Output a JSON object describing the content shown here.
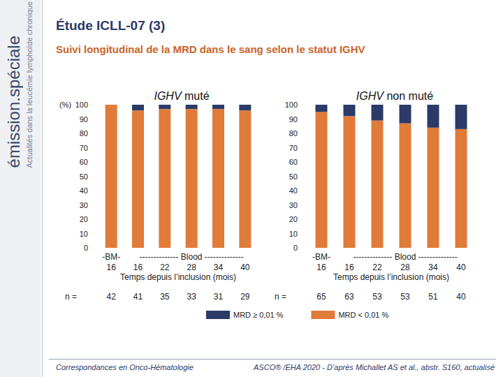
{
  "page": {
    "title": "Étude ICLL-07 (3)",
    "subtitle": "Suivi longitudinal de la MRD dans le sang selon le statut IGHV",
    "banner": "émission.spéciale",
    "banner_subtitle": "Actualités dans la leucémie lymphoïde chronique",
    "footer_left": "Correspondances en Onco-Hématologie",
    "footer_right": "ASCO® /EHA 2020 - D’après Michallet AS et al., abstr. S160, actualisé"
  },
  "chart_data": [
    {
      "type": "bar",
      "title": "IGHV muté",
      "ylabel": "(%)",
      "xlabel": "Temps depuis l’inclusion (mois)",
      "categories": [
        "16",
        "16",
        "22",
        "28",
        "34",
        "40"
      ],
      "x_groups": [
        {
          "label": "-BM-",
          "first": 0,
          "last": 0
        },
        {
          "label": "-------------- Blood --------------",
          "first": 1,
          "last": 5
        }
      ],
      "n_label": "n =",
      "n": [
        42,
        41,
        35,
        33,
        31,
        29
      ],
      "series": [
        {
          "name": "MRD ≥ 0,01 %",
          "color": "#2b3a67",
          "values": [
            0,
            4,
            3,
            3,
            3,
            4
          ]
        },
        {
          "name": "MRD < 0,01 %",
          "color": "#e07b39",
          "values": [
            100,
            96,
            97,
            97,
            97,
            96
          ]
        }
      ],
      "ylim": [
        0,
        100
      ],
      "yticks": [
        0,
        10,
        20,
        30,
        40,
        50,
        60,
        70,
        80,
        90,
        100
      ],
      "stacked": true,
      "grid": false
    },
    {
      "type": "bar",
      "title": "IGHV non muté",
      "xlabel": "Temps depuis l’inclusion (mois)",
      "categories": [
        "16",
        "16",
        "22",
        "28",
        "34",
        "40"
      ],
      "x_groups": [
        {
          "label": "-BM-",
          "first": 0,
          "last": 0
        },
        {
          "label": "-------------- Blood --------------",
          "first": 1,
          "last": 5
        }
      ],
      "n_label": "n =",
      "n": [
        65,
        63,
        53,
        53,
        51,
        40
      ],
      "series": [
        {
          "name": "MRD ≥ 0,01 %",
          "color": "#2b3a67",
          "values": [
            5,
            8,
            11,
            13,
            16,
            17
          ]
        },
        {
          "name": "MRD < 0,01 %",
          "color": "#e07b39",
          "values": [
            95,
            92,
            89,
            87,
            84,
            83
          ]
        }
      ],
      "ylim": [
        0,
        100
      ],
      "yticks": [
        0,
        10,
        20,
        30,
        40,
        50,
        60,
        70,
        80,
        90,
        100
      ],
      "stacked": true,
      "grid": false
    }
  ]
}
